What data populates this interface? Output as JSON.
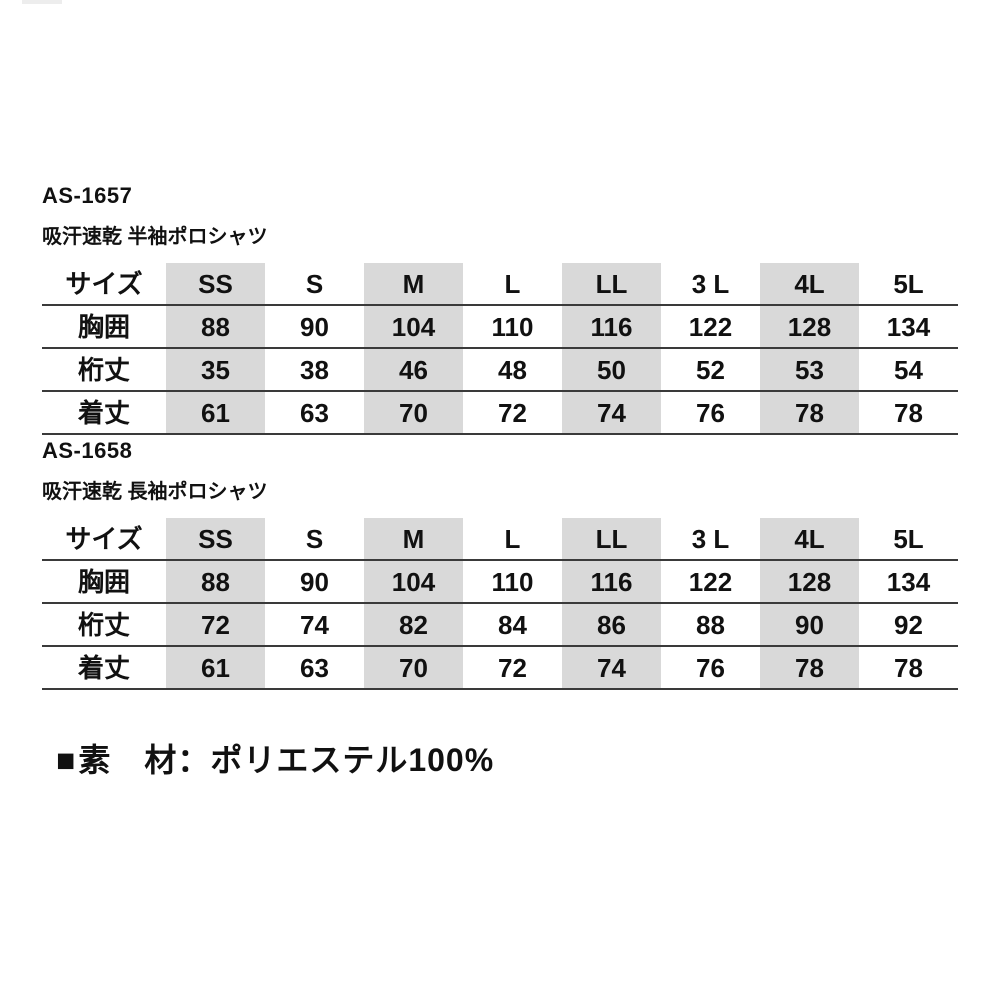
{
  "document": {
    "sections": [
      {
        "code": "AS-1657",
        "product_name": "吸汗速乾 半袖ポロシャツ",
        "size_table": {
          "header": [
            "サイズ",
            "SS",
            "S",
            "M",
            "L",
            "LL",
            "3 L",
            "4L",
            "5L"
          ],
          "shaded_columns": [
            "SS",
            "M",
            "LL",
            "4L"
          ],
          "rows": [
            {
              "label": "胸囲",
              "values": [
                88,
                90,
                104,
                110,
                116,
                122,
                128,
                134
              ]
            },
            {
              "label": "桁丈",
              "values": [
                35,
                38,
                46,
                48,
                50,
                52,
                53,
                54
              ]
            },
            {
              "label": "着丈",
              "values": [
                61,
                63,
                70,
                72,
                74,
                76,
                78,
                78
              ]
            }
          ]
        }
      },
      {
        "code": "AS-1658",
        "product_name": "吸汗速乾 長袖ポロシャツ",
        "size_table": {
          "header": [
            "サイズ",
            "SS",
            "S",
            "M",
            "L",
            "LL",
            "3 L",
            "4L",
            "5L"
          ],
          "shaded_columns": [
            "SS",
            "M",
            "LL",
            "4L"
          ],
          "rows": [
            {
              "label": "胸囲",
              "values": [
                88,
                90,
                104,
                110,
                116,
                122,
                128,
                134
              ]
            },
            {
              "label": "桁丈",
              "values": [
                72,
                74,
                82,
                84,
                86,
                88,
                90,
                92
              ]
            },
            {
              "label": "着丈",
              "values": [
                61,
                63,
                70,
                72,
                74,
                76,
                78,
                78
              ]
            }
          ]
        }
      }
    ],
    "material_note": {
      "bullet": "■",
      "text": "素　材：ポリエステル100%"
    },
    "colors": {
      "shaded_column_bg": "#d9d9d9",
      "rule_line": "#3a3a3a",
      "text": "#111111"
    }
  }
}
